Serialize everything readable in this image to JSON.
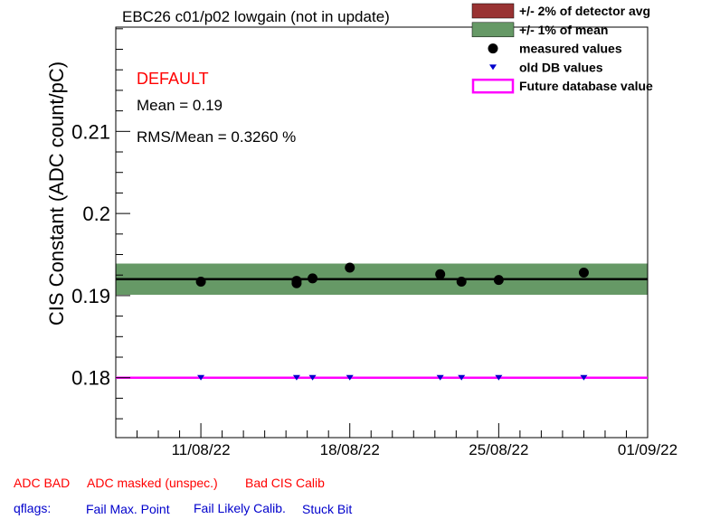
{
  "chart_data": {
    "type": "scatter",
    "title": "EBC26 c01/p02 lowgain (not in update)",
    "ylabel": "CIS Constant (ADC count/pC)",
    "xlabel": "",
    "ylim": [
      0.1727,
      0.2227
    ],
    "xlim": [
      "2022-08-07",
      "2022-09-01"
    ],
    "x_ticks": [
      {
        "date": "2022-08-11",
        "label": "11/08/22"
      },
      {
        "date": "2022-08-18",
        "label": "18/08/22"
      },
      {
        "date": "2022-08-25",
        "label": "25/08/22"
      },
      {
        "date": "2022-09-01",
        "label": "01/09/22"
      }
    ],
    "y_ticks": [
      {
        "value": 0.18,
        "label": "0.18"
      },
      {
        "value": 0.19,
        "label": "0.19"
      },
      {
        "value": 0.2,
        "label": "0.2"
      },
      {
        "value": 0.21,
        "label": "0.21"
      }
    ],
    "mean": 0.192,
    "band_1pct": [
      0.1901,
      0.1939
    ],
    "future_db_value": 0.18,
    "series": [
      {
        "name": "measured values",
        "points": [
          {
            "x": "2022-08-11",
            "y": 0.1917
          },
          {
            "x": "2022-08-15 12:00",
            "y": 0.1918
          },
          {
            "x": "2022-08-15 12:00",
            "y": 0.1915
          },
          {
            "x": "2022-08-16 06:00",
            "y": 0.1921
          },
          {
            "x": "2022-08-18",
            "y": 0.1934
          },
          {
            "x": "2022-08-22 06:00",
            "y": 0.1926
          },
          {
            "x": "2022-08-23 06:00",
            "y": 0.1917
          },
          {
            "x": "2022-08-25",
            "y": 0.1919
          },
          {
            "x": "2022-08-29",
            "y": 0.1928
          }
        ]
      },
      {
        "name": "old DB values",
        "points": [
          {
            "x": "2022-08-11",
            "y": 0.18
          },
          {
            "x": "2022-08-15 12:00",
            "y": 0.18
          },
          {
            "x": "2022-08-16 06:00",
            "y": 0.18
          },
          {
            "x": "2022-08-18",
            "y": 0.18
          },
          {
            "x": "2022-08-22 06:00",
            "y": 0.18
          },
          {
            "x": "2022-08-23 06:00",
            "y": 0.18
          },
          {
            "x": "2022-08-25",
            "y": 0.18
          },
          {
            "x": "2022-08-29",
            "y": 0.18
          }
        ]
      }
    ],
    "legend": [
      {
        "label": "+/- 2% of detector avg",
        "kind": "box",
        "color": "#993333"
      },
      {
        "label": "+/- 1% of mean",
        "kind": "box",
        "color": "#669966"
      },
      {
        "label": "measured values",
        "kind": "dot",
        "color": "#000000"
      },
      {
        "label": "old DB values",
        "kind": "triangle",
        "color": "#0000cc"
      },
      {
        "label": "Future database value",
        "kind": "line",
        "color": "#ff00ff"
      }
    ],
    "legend_position": "top-right",
    "stats": {
      "status": "DEFAULT",
      "mean_text": "Mean = 0.19",
      "rms_text": "RMS/Mean = 0.3260 %"
    },
    "colors": {
      "band": "#669966",
      "mean_line": "#000000",
      "future_line": "#ff00ff",
      "measured": "#000000",
      "old_db": "#0000cc",
      "status": "#ff0000"
    }
  },
  "footer": {
    "bad_flags": [
      "ADC BAD",
      "ADC masked (unspec.)",
      "Bad CIS Calib"
    ],
    "qflags_label": "qflags:",
    "qflags": [
      "Fail Max. Point",
      "Fail Likely Calib.",
      "Stuck Bit"
    ]
  }
}
